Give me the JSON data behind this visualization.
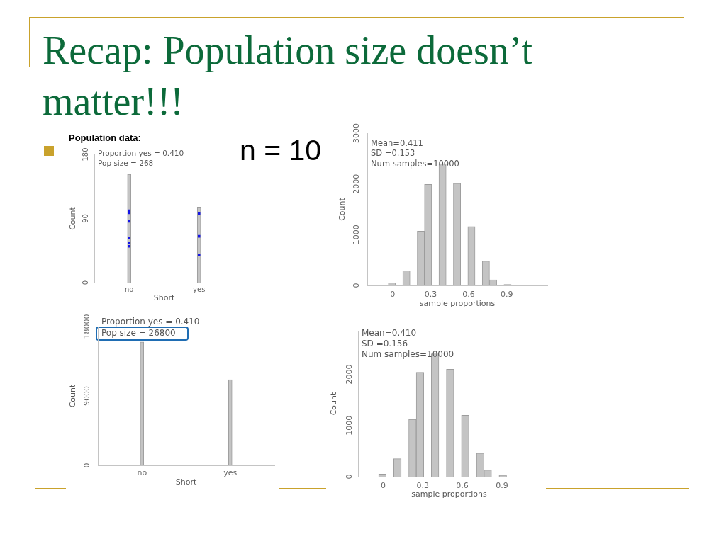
{
  "chart_data": [
    {
      "type": "other",
      "title": "Recap: Population size doesn’t matter!!!",
      "annotations": [
        "n = 10"
      ]
    },
    {
      "type": "bar",
      "title": "Population data:",
      "categories": [
        "no",
        "yes"
      ],
      "xlabel": "Short",
      "ylabel": "Count",
      "ylim": [
        0,
        180
      ],
      "yticks": [
        0,
        90,
        180
      ],
      "marker": "square",
      "annotations": [
        "Proportion yes = 0.410",
        "Pop size = 268"
      ],
      "series": [
        {
          "type": "bar",
          "color": "#c4c4c4",
          "values": [
            152,
            106
          ]
        },
        {
          "type": "scatter",
          "color": "#1414e6",
          "x": [
            "no",
            "no",
            "no",
            "no",
            "no",
            "no",
            "yes",
            "yes",
            "yes"
          ],
          "values": [
            101,
            98,
            86,
            63,
            56,
            51,
            97,
            65,
            39
          ]
        }
      ]
    },
    {
      "type": "histogram",
      "bins": [
        -0.034,
        0.023,
        0.08,
        0.137,
        0.194,
        0.251,
        0.308,
        0.365,
        0.422,
        0.479,
        0.536,
        0.593,
        0.65,
        0.707,
        0.764,
        0.821,
        0.878,
        0.935,
        0.992,
        1.049
      ],
      "values": [
        50,
        0,
        290,
        0,
        1070,
        1990,
        0,
        2400,
        0,
        2010,
        0,
        1160,
        0,
        480,
        110,
        0,
        20,
        0,
        0
      ],
      "color": "#c4c4c4",
      "xlabel": "sample proportions",
      "ylabel": "Count",
      "xlim": [
        -0.2,
        1.22
      ],
      "xticks": [
        0,
        0.3,
        0.6,
        0.9
      ],
      "ylim": [
        0,
        3000
      ],
      "yticks": [
        0,
        1000,
        2000,
        3000
      ],
      "annotations": [
        "Mean=0.411",
        "SD =0.153",
        "Num samples=10000"
      ]
    },
    {
      "type": "bar",
      "categories": [
        "no",
        "yes"
      ],
      "values": [
        16000,
        11100
      ],
      "color": "#c4c4c4",
      "xlabel": "Short",
      "ylabel": "Count",
      "ylim": [
        0,
        18000
      ],
      "yticks": [
        0,
        9000,
        18000
      ],
      "annotations": [
        "Proportion yes = 0.410",
        "Pop size = 26800"
      ]
    },
    {
      "type": "histogram",
      "bins": [
        -0.034,
        0.023,
        0.08,
        0.137,
        0.194,
        0.251,
        0.308,
        0.365,
        0.422,
        0.479,
        0.536,
        0.593,
        0.65,
        0.707,
        0.764,
        0.821,
        0.878,
        0.935,
        0.992,
        1.049
      ],
      "values": [
        50,
        0,
        350,
        0,
        1120,
        2040,
        0,
        2400,
        0,
        2100,
        0,
        1200,
        0,
        460,
        130,
        0,
        30,
        0,
        0
      ],
      "color": "#c4c4c4",
      "xlabel": "sample proportions",
      "ylabel": "Count",
      "xlim": [
        -0.19,
        1.19
      ],
      "xticks": [
        0,
        0.3,
        0.6,
        0.9
      ],
      "ylim": [
        0,
        2850
      ],
      "yticks": [
        0,
        1000,
        2000
      ],
      "annotations": [
        "Mean=0.410",
        "SD =0.156",
        "Num samples=10000"
      ]
    }
  ]
}
